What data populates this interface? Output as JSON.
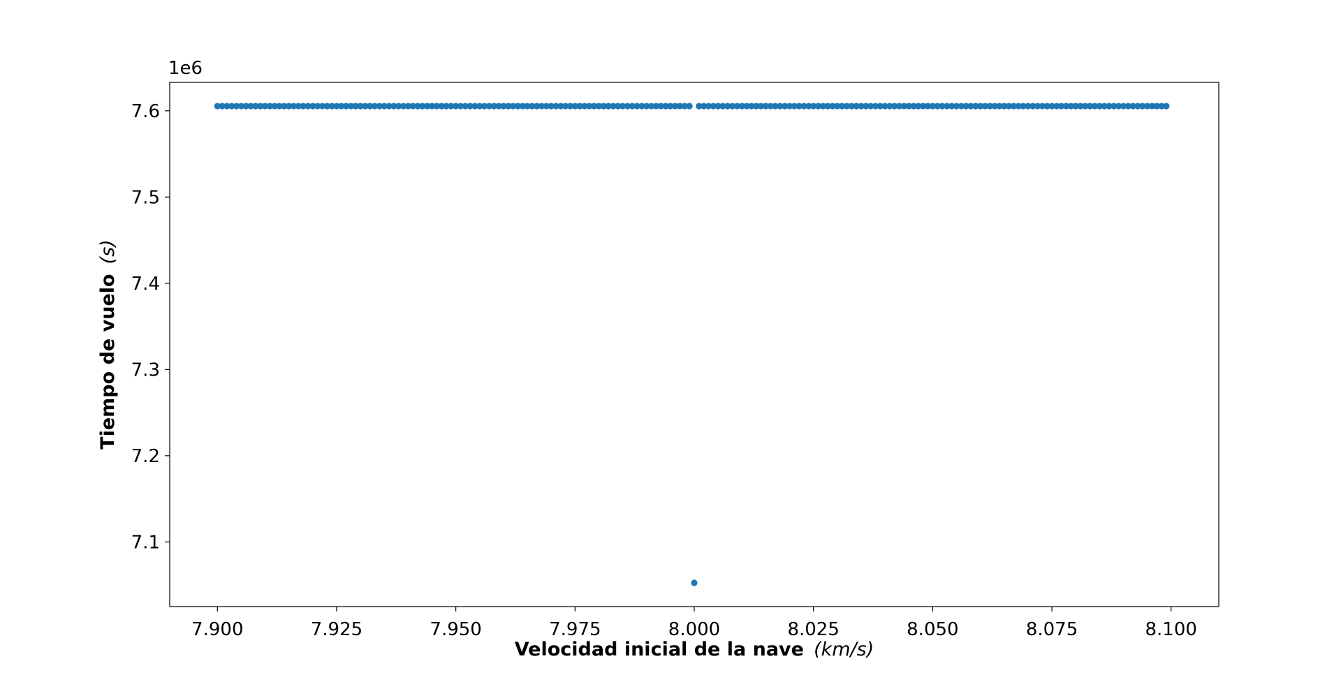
{
  "chart_data": {
    "type": "scatter",
    "title": "",
    "xlabel": "Velocidad inicial de la nave",
    "xlabel_unit": "(km/s)",
    "ylabel": "Tiempo de vuelo",
    "ylabel_unit": "(s)",
    "y_offset_text": "1e6",
    "xlim": [
      7.89,
      8.11
    ],
    "ylim": [
      7.025,
      7.633
    ],
    "x_ticks": [
      7.9,
      7.925,
      7.95,
      7.975,
      8.0,
      8.025,
      8.05,
      8.075,
      8.1
    ],
    "x_tick_labels": [
      "7.900",
      "7.925",
      "7.950",
      "7.975",
      "8.000",
      "8.025",
      "8.050",
      "8.075",
      "8.100"
    ],
    "y_ticks": [
      7.1,
      7.2,
      7.3,
      7.4,
      7.5,
      7.6
    ],
    "y_tick_labels": [
      "7.1",
      "7.2",
      "7.3",
      "7.4",
      "7.5",
      "7.6"
    ],
    "grid": false,
    "legend": "none",
    "marker_color": "#1f77b4",
    "series": [
      {
        "x_start": 7.9,
        "x_step": 0.001,
        "count": 200,
        "y_default": 7.6055,
        "exceptions": [
          {
            "x": 8.0,
            "y": 7.0525
          }
        ]
      }
    ]
  }
}
